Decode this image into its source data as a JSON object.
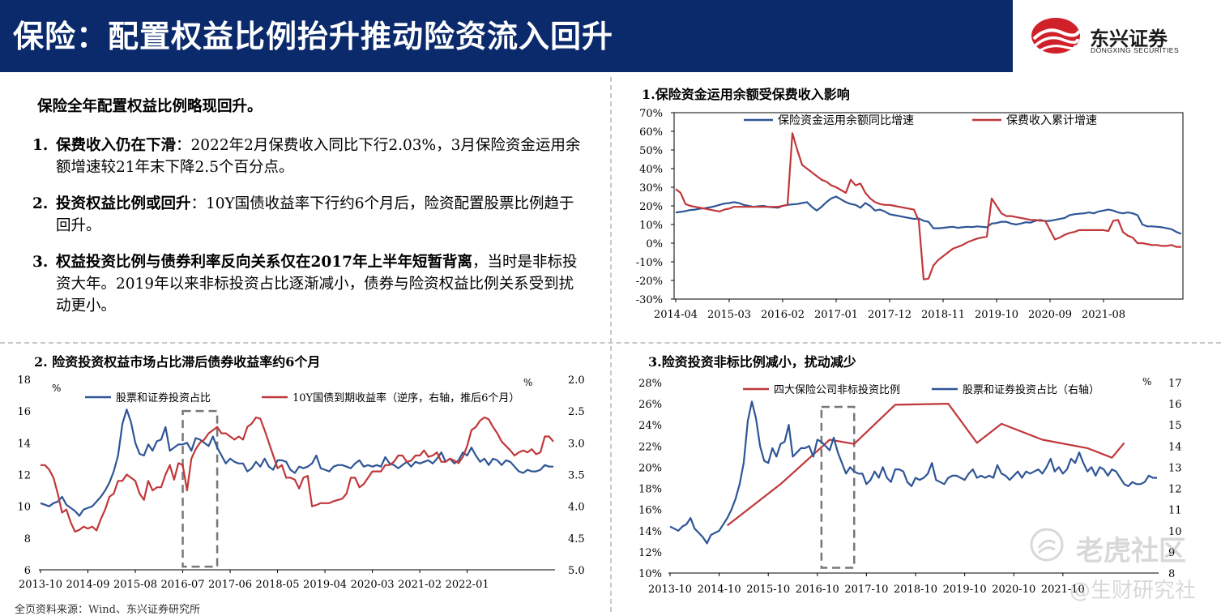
{
  "header": {
    "title": "保险：配置权益比例抬升推动险资流入回升",
    "logo_cn": "东兴证券",
    "logo_en": "DONGXING SECURITIES",
    "background_color": "#0b2a6b"
  },
  "summary": {
    "intro": "保险全年配置权益比例略现回升。",
    "points": [
      {
        "num": "1.",
        "head": "保费收入仍在下滑",
        "body": "：2022年2月保费收入同比下行2.03%，3月保险资金运用余额增速较21年末下降2.5个百分点。"
      },
      {
        "num": "2.",
        "head": "投资权益比例或回升",
        "body": "：10Y国债收益率下行约6个月后，险资配置股票比例趋于回升。"
      },
      {
        "num": "3.",
        "head": "权益投资比例与债券利率反向关系仅在2017年上半年短暂背离",
        "body": "，当时是非标投资大年。2019年以来非标投资占比逐渐减小，债券与险资权益比例关系受到扰动更小。"
      }
    ]
  },
  "source": "全页资料来源：Wind、东兴证券研究所",
  "watermark": {
    "line1": "老虎社区",
    "line2": "@生财研究社"
  },
  "chart_data": [
    {
      "id": "chart1",
      "type": "line",
      "title": "1.保险资金运用余额受保费收入影响",
      "x_tick_labels": [
        "2014-04",
        "2015-03",
        "2016-02",
        "2017-01",
        "2017-12",
        "2018-11",
        "2019-10",
        "2020-09",
        "2021-08"
      ],
      "y_tick_labels": [
        "70%",
        "60%",
        "50%",
        "40%",
        "30%",
        "20%",
        "10%",
        "0%",
        "-10%",
        "-20%",
        "-30%"
      ],
      "ylim": [
        -30,
        70
      ],
      "x_start": "2014-04",
      "x_step_months": 1,
      "series": [
        {
          "name": "保险资金运用余额同比增速",
          "color": "#2e5596",
          "values": [
            16.5,
            16.8,
            17.2,
            17.8,
            18.0,
            18.5,
            18.8,
            19.2,
            19.8,
            20.5,
            21.2,
            21.5,
            22.0,
            21.5,
            20.5,
            20.0,
            19.5,
            19.8,
            20.0,
            19.5,
            19.2,
            19.0,
            20.0,
            20.5,
            20.8,
            21.0,
            21.5,
            22.0,
            19.5,
            17.5,
            19.5,
            22.0,
            24.0,
            25.0,
            23.5,
            22.0,
            21.0,
            20.5,
            19.0,
            21.5,
            20.0,
            17.5,
            18.0,
            17.0,
            15.5,
            15.0,
            14.5,
            14.0,
            13.5,
            13.0,
            13.2,
            12.0,
            11.5,
            8.0,
            8.0,
            8.2,
            8.5,
            8.8,
            8.2,
            8.5,
            8.8,
            8.6,
            9.0,
            8.8,
            8.5,
            10.5,
            10.8,
            11.5,
            11.5,
            10.5,
            10.0,
            10.5,
            11.2,
            11.0,
            12.0,
            12.5,
            11.8,
            12.0,
            12.5,
            13.0,
            13.5,
            15.0,
            15.5,
            15.8,
            16.0,
            16.5,
            16.0,
            17.0,
            17.5,
            18.0,
            17.5,
            16.5,
            16.0,
            16.5,
            16.0,
            15.0,
            10.0,
            9.0,
            9.0,
            8.8,
            8.5,
            8.0,
            7.5,
            6.0,
            5.0
          ]
        },
        {
          "name": "保费收入累计增速",
          "color": "#c0373a",
          "values": [
            29,
            27,
            21,
            20,
            19.5,
            19,
            18.5,
            18,
            17.5,
            17,
            18,
            18.5,
            19.5,
            19.5,
            19.5,
            19.5,
            19.5,
            19.5,
            19.5,
            19.5,
            19.5,
            19.5,
            20,
            20.5,
            59,
            50,
            42,
            40,
            38,
            36,
            34,
            33,
            31,
            30,
            28.5,
            27,
            34,
            31,
            32,
            27,
            24,
            22,
            21,
            20.5,
            20.5,
            20,
            19.5,
            19,
            18.5,
            18,
            12,
            -19.5,
            -19,
            -12,
            -9,
            -7,
            -5,
            -3,
            -2,
            -1,
            0.5,
            1.5,
            2.5,
            3,
            3.5,
            24,
            20,
            16,
            14.5,
            14.5,
            14,
            13.5,
            13,
            12.5,
            12.5,
            12,
            12,
            7,
            2,
            3,
            4.5,
            5.5,
            6,
            7,
            7,
            7,
            7,
            7,
            7,
            6.5,
            12,
            12.5,
            6,
            4,
            3,
            0,
            0,
            -0.5,
            -1,
            -1,
            -1.5,
            -1.5,
            -1,
            -2,
            -2
          ]
        }
      ]
    },
    {
      "id": "chart2",
      "type": "line",
      "title": "2. 险资投资权益市场占比滞后债券收益率约6个月",
      "x_tick_labels": [
        "2013-10",
        "2014-09",
        "2015-08",
        "2016-07",
        "2017-06",
        "2018-05",
        "2019-04",
        "2020-03",
        "2021-02",
        "2022-01"
      ],
      "y_left_ticks": [
        "18",
        "16",
        "14",
        "12",
        "10",
        "8",
        "6"
      ],
      "y_right_ticks": [
        "2.0",
        "2.5",
        "3.0",
        "3.5",
        "4.0",
        "4.5",
        "5.0"
      ],
      "left_unit": "%",
      "right_unit": "%",
      "ylim_left": [
        6,
        18
      ],
      "ylim_right_inverted": [
        2.0,
        5.0
      ],
      "x_start": "2013-10",
      "x_step_months": 1,
      "highlight_box": {
        "from": "2016-07",
        "to": "2017-03"
      },
      "series": [
        {
          "name": "股票和证券投资占比",
          "axis": "left",
          "color": "#2e5596",
          "values": [
            10.2,
            10.1,
            10.0,
            10.2,
            10.3,
            10.6,
            10.1,
            9.9,
            9.7,
            9.4,
            9.8,
            9.9,
            10.0,
            10.3,
            10.6,
            11.0,
            11.5,
            12.2,
            13.2,
            15.2,
            16.1,
            15.3,
            14.0,
            13.3,
            13.2,
            13.9,
            13.5,
            14.1,
            14.2,
            15.0,
            13.5,
            13.7,
            13.9,
            13.9,
            14.0,
            13.5,
            14.3,
            14.2,
            14.0,
            13.8,
            14.4,
            13.7,
            13.2,
            12.7,
            13.0,
            12.8,
            12.7,
            12.7,
            12.2,
            12.4,
            12.8,
            12.5,
            13.0,
            12.5,
            12.3,
            12.9,
            12.9,
            12.8,
            12.3,
            12.1,
            12.5,
            12.4,
            12.5,
            12.7,
            13.2,
            12.4,
            12.3,
            12.2,
            12.5,
            12.6,
            12.6,
            12.5,
            12.4,
            12.7,
            12.9,
            12.5,
            12.6,
            12.5,
            12.6,
            12.5,
            13.1,
            12.7,
            12.6,
            12.4,
            12.6,
            12.8,
            12.5,
            12.8,
            12.7,
            12.8,
            12.9,
            12.7,
            13.0,
            13.4,
            12.8,
            13.0,
            12.7,
            12.9,
            13.4,
            13.2,
            13.7,
            13.2,
            12.8,
            13.0,
            12.6,
            13.0,
            12.9,
            12.6,
            12.9,
            12.8,
            12.5,
            12.2,
            12.1,
            12.3,
            12.2,
            12.2,
            12.3,
            12.6,
            12.5,
            12.5
          ]
        },
        {
          "name": "10Y国债到期收益率（逆序，右轴，推后6个月）",
          "axis": "right",
          "color": "#c0373a",
          "values": [
            3.35,
            3.35,
            3.42,
            3.55,
            3.8,
            4.1,
            4.05,
            4.25,
            4.4,
            4.37,
            4.32,
            4.35,
            4.32,
            4.38,
            4.2,
            4.05,
            3.85,
            3.8,
            3.6,
            3.6,
            3.5,
            3.55,
            3.6,
            3.8,
            3.9,
            3.6,
            3.75,
            3.7,
            3.7,
            3.5,
            3.35,
            3.58,
            3.32,
            3.35,
            3.75,
            3.25,
            3.1,
            3.0,
            2.95,
            2.85,
            2.8,
            2.75,
            2.85,
            2.85,
            2.9,
            2.95,
            2.9,
            2.95,
            2.75,
            2.7,
            2.6,
            2.62,
            2.8,
            3.0,
            3.2,
            3.4,
            3.35,
            3.55,
            3.55,
            3.58,
            3.72,
            3.55,
            3.52,
            4.0,
            3.98,
            3.95,
            3.95,
            3.95,
            3.92,
            3.9,
            3.88,
            3.8,
            3.55,
            3.55,
            3.7,
            3.65,
            3.55,
            3.45,
            3.45,
            3.45,
            3.35,
            3.35,
            3.3,
            3.2,
            3.2,
            3.3,
            3.28,
            3.2,
            3.2,
            3.12,
            3.22,
            3.2,
            3.15,
            3.3,
            3.3,
            3.25,
            3.28,
            3.32,
            3.22,
            3.05,
            2.8,
            2.75,
            2.65,
            2.6,
            2.63,
            2.75,
            2.85,
            2.98,
            3.05,
            3.12,
            3.2,
            3.15,
            3.12,
            3.15,
            3.1,
            3.18,
            3.15,
            2.9,
            2.9,
            2.98
          ]
        }
      ]
    },
    {
      "id": "chart3",
      "type": "line",
      "title": "3.险资投资非标比例减小，扰动减少",
      "x_tick_labels": [
        "2013-10",
        "2014-10",
        "2015-10",
        "2016-10",
        "2017-10",
        "2018-10",
        "2019-10",
        "2020-10",
        "2021-10"
      ],
      "y_left_ticks": [
        "28%",
        "26%",
        "24%",
        "22%",
        "20%",
        "18%",
        "16%",
        "14%",
        "12%",
        "10%"
      ],
      "y_right_ticks": [
        "17",
        "16",
        "15",
        "14",
        "13",
        "12",
        "11",
        "10",
        "9",
        "8"
      ],
      "right_unit": "%",
      "ylim_left": [
        10,
        28
      ],
      "ylim_right": [
        8,
        17
      ],
      "highlight_box": {
        "from": "2016-11",
        "to": "2017-07"
      },
      "series": [
        {
          "name": "四大保险公司非标投资比例",
          "axis": "left",
          "color": "#c0373a",
          "x_months": [
            14,
            27,
            35,
            39,
            45,
            55,
            68,
            75,
            81,
            91,
            102,
            108,
            111
          ],
          "values": [
            14.5,
            18.4,
            21.2,
            22.6,
            22.2,
            25.9,
            26,
            22.3,
            24.1,
            22.6,
            21.8,
            20.9,
            22.3
          ]
        },
        {
          "name": "股票和证券投资占比（右轴）",
          "axis": "right",
          "color": "#2e5596",
          "x_start_month": 0,
          "values": [
            10.2,
            10.1,
            10.0,
            10.2,
            10.3,
            10.6,
            10.1,
            9.9,
            9.7,
            9.4,
            9.8,
            9.9,
            10.0,
            10.3,
            10.6,
            11.0,
            11.5,
            12.2,
            13.2,
            15.2,
            16.1,
            15.3,
            14.0,
            13.3,
            13.2,
            13.9,
            13.5,
            14.1,
            14.2,
            15.0,
            13.5,
            13.7,
            13.9,
            13.9,
            14.0,
            13.5,
            14.3,
            14.2,
            14.0,
            13.8,
            14.4,
            13.7,
            13.2,
            12.7,
            13.0,
            12.8,
            12.7,
            12.7,
            12.2,
            12.4,
            12.8,
            12.5,
            13.0,
            12.5,
            12.3,
            12.9,
            12.9,
            12.8,
            12.3,
            12.1,
            12.5,
            12.4,
            12.5,
            12.7,
            13.2,
            12.4,
            12.3,
            12.2,
            12.5,
            12.6,
            12.6,
            12.5,
            12.4,
            12.7,
            12.9,
            12.5,
            12.6,
            12.5,
            12.6,
            12.5,
            13.1,
            12.7,
            12.6,
            12.4,
            12.6,
            12.8,
            12.5,
            12.8,
            12.7,
            12.8,
            12.9,
            12.7,
            13.0,
            13.4,
            12.8,
            13.0,
            12.7,
            12.9,
            13.4,
            13.2,
            13.7,
            13.2,
            12.8,
            13.0,
            12.6,
            13.0,
            12.9,
            12.6,
            12.9,
            12.8,
            12.5,
            12.2,
            12.1,
            12.3,
            12.2,
            12.2,
            12.3,
            12.6,
            12.5,
            12.5
          ]
        }
      ]
    }
  ]
}
